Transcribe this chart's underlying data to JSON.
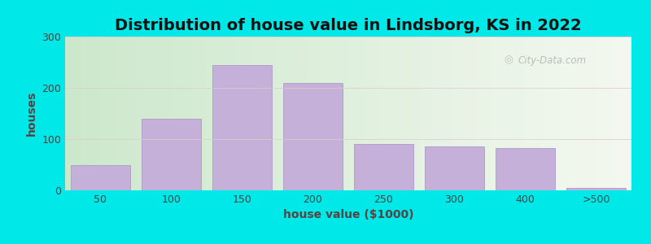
{
  "title": "Distribution of house value in Lindsborg, KS in 2022",
  "xlabel": "house value ($1000)",
  "ylabel": "houses",
  "bar_labels": [
    "50",
    "100",
    "150",
    "200",
    "250",
    "300",
    "400",
    ">500"
  ],
  "bar_values": [
    50,
    140,
    245,
    210,
    90,
    85,
    83,
    5
  ],
  "bar_color": "#c4b0d8",
  "bar_edgecolor": "#b09ac8",
  "ylim": [
    0,
    300
  ],
  "yticks": [
    0,
    100,
    200,
    300
  ],
  "bg_outer": "#00e8e8",
  "bg_plot_color_left": "#cce8cc",
  "bg_plot_color_right": "#f4f8f0",
  "title_fontsize": 14,
  "axis_fontsize": 10,
  "tick_fontsize": 9,
  "watermark_text": "City-Data.com"
}
